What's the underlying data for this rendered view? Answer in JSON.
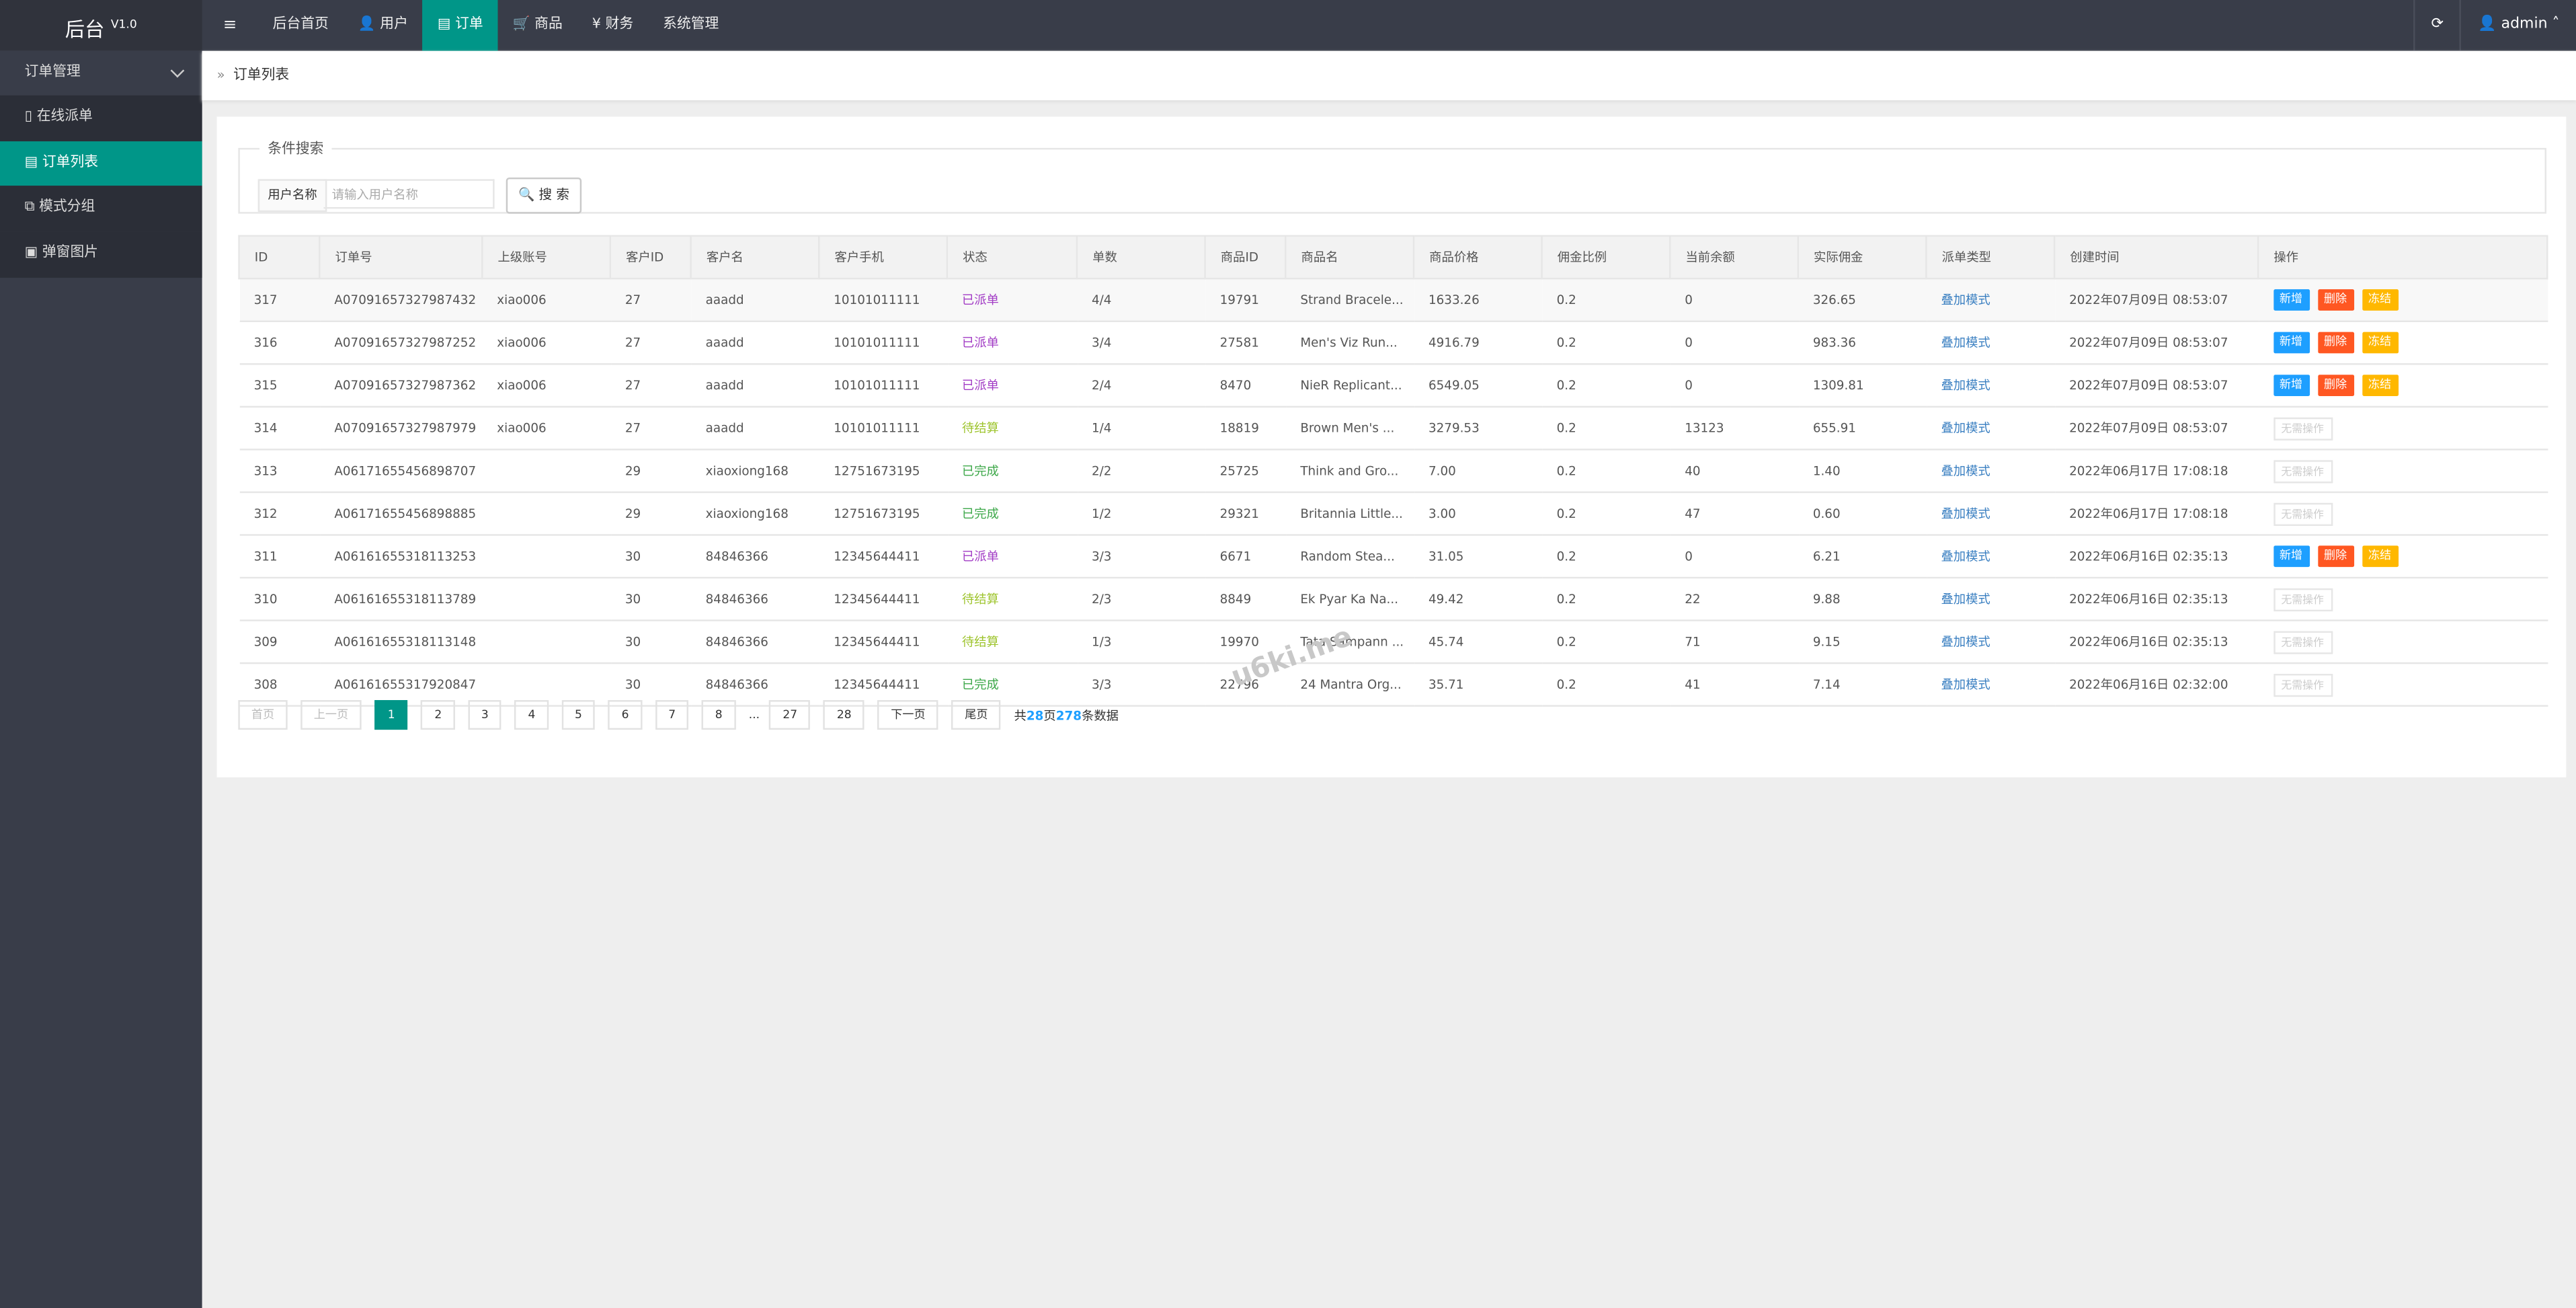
{
  "header": {
    "brand": "后台",
    "version": "V1.0",
    "nav": [
      "后台首页",
      "用户",
      "订单",
      "商品",
      "财务",
      "系统管理"
    ],
    "active_nav": 2,
    "user": "admin"
  },
  "sidebar": {
    "group": "订单管理",
    "items": [
      "在线派单",
      "订单列表",
      "模式分组",
      "弹窗图片"
    ],
    "active_item": 1
  },
  "breadcrumb": "订单列表",
  "search": {
    "legend": "条件搜索",
    "label": "用户名称",
    "placeholder": "请输入用户名称",
    "button": "搜 索"
  },
  "table": {
    "columns": [
      "ID",
      "订单号",
      "上级账号",
      "客户ID",
      "客户名",
      "客户手机",
      "状态",
      "单数",
      "商品ID",
      "商品名",
      "商品价格",
      "佣金比例",
      "当前余额",
      "实际佣金",
      "派单类型",
      "创建时间",
      "操作"
    ],
    "rows": [
      [
        317,
        "A07091657327987432",
        "xiao006",
        27,
        "aaadd",
        "10101011111",
        {
          "text": "已派单",
          "color": "#a23cc5"
        },
        "4/4",
        19791,
        "Strand Bracele...",
        "1633.26",
        0.2,
        0,
        "326.65",
        "叠加模式",
        "2022年07月09日 08:53:07",
        [
          "新增",
          "删除",
          "冻结"
        ]
      ],
      [
        316,
        "A07091657327987252",
        "xiao006",
        27,
        "aaadd",
        "10101011111",
        {
          "text": "已派单",
          "color": "#a23cc5"
        },
        "3/4",
        27581,
        "Men's Viz Run...",
        "4916.79",
        0.2,
        0,
        "983.36",
        "叠加模式",
        "2022年07月09日 08:53:07",
        [
          "新增",
          "删除",
          "冻结"
        ]
      ],
      [
        315,
        "A07091657327987362",
        "xiao006",
        27,
        "aaadd",
        "10101011111",
        {
          "text": "已派单",
          "color": "#a23cc5"
        },
        "2/4",
        8470,
        "NieR Replicant...",
        "6549.05",
        0.2,
        0,
        "1309.81",
        "叠加模式",
        "2022年07月09日 08:53:07",
        [
          "新增",
          "删除",
          "冻结"
        ]
      ],
      [
        314,
        "A07091657327987979",
        "xiao006",
        27,
        "aaadd",
        "10101011111",
        {
          "text": "待结算",
          "color": "#9ec42d"
        },
        "1/4",
        18819,
        "Brown Men's ...",
        "3279.53",
        0.2,
        13123,
        "655.91",
        "叠加模式",
        "2022年07月09日 08:53:07",
        "无需操作"
      ],
      [
        313,
        "A06171655456898707",
        null,
        29,
        "xiaoxiong168",
        "12751673195",
        {
          "text": "已完成",
          "color": "#3ea84a"
        },
        "2/2",
        25725,
        "Think and Gro...",
        "7.00",
        0.2,
        40,
        "1.40",
        "叠加模式",
        "2022年06月17日 17:08:18",
        "无需操作"
      ],
      [
        312,
        "A06171655456898885",
        null,
        29,
        "xiaoxiong168",
        "12751673195",
        {
          "text": "已完成",
          "color": "#3ea84a"
        },
        "1/2",
        29321,
        "Britannia Little...",
        "3.00",
        0.2,
        47,
        "0.60",
        "叠加模式",
        "2022年06月17日 17:08:18",
        "无需操作"
      ],
      [
        311,
        "A06161655318113253",
        null,
        30,
        "84846366",
        "12345644411",
        {
          "text": "已派单",
          "color": "#a23cc5"
        },
        "3/3",
        6671,
        "Random Stea...",
        "31.05",
        0.2,
        0,
        "6.21",
        "叠加模式",
        "2022年06月16日 02:35:13",
        [
          "新增",
          "删除",
          "冻结"
        ]
      ],
      [
        310,
        "A06161655318113789",
        null,
        30,
        "84846366",
        "12345644411",
        {
          "text": "待结算",
          "color": "#9ec42d"
        },
        "2/3",
        8849,
        "Ek Pyar Ka Na...",
        "49.42",
        0.2,
        22,
        "9.88",
        "叠加模式",
        "2022年06月16日 02:35:13",
        "无需操作"
      ],
      [
        309,
        "A06161655318113148",
        null,
        30,
        "84846366",
        "12345644411",
        {
          "text": "待结算",
          "color": "#9ec42d"
        },
        "1/3",
        19970,
        "Tata Sampann ...",
        "45.74",
        0.2,
        71,
        "9.15",
        "叠加模式",
        "2022年06月16日 02:35:13",
        "无需操作"
      ],
      [
        308,
        "A06161655317920847",
        null,
        30,
        "84846366",
        "12345644411",
        {
          "text": "已完成",
          "color": "#3ea84a"
        },
        "3/3",
        22796,
        "24 Mantra Org...",
        "35.71",
        0.2,
        41,
        "7.14",
        "叠加模式",
        "2022年06月16日 02:32:00",
        "无需操作"
      ]
    ]
  },
  "pagination": {
    "first": "首页",
    "prev": "上一页",
    "pages": [
      1,
      2,
      3,
      4,
      5,
      6,
      7,
      8
    ],
    "current": 0,
    "ellipsis": "...",
    "last_pages": [
      27,
      28
    ],
    "next": "下一页",
    "end": "尾页",
    "summary": [
      "共",
      "28",
      "页",
      "278",
      "条数据"
    ]
  },
  "watermark": "u6ki.me"
}
